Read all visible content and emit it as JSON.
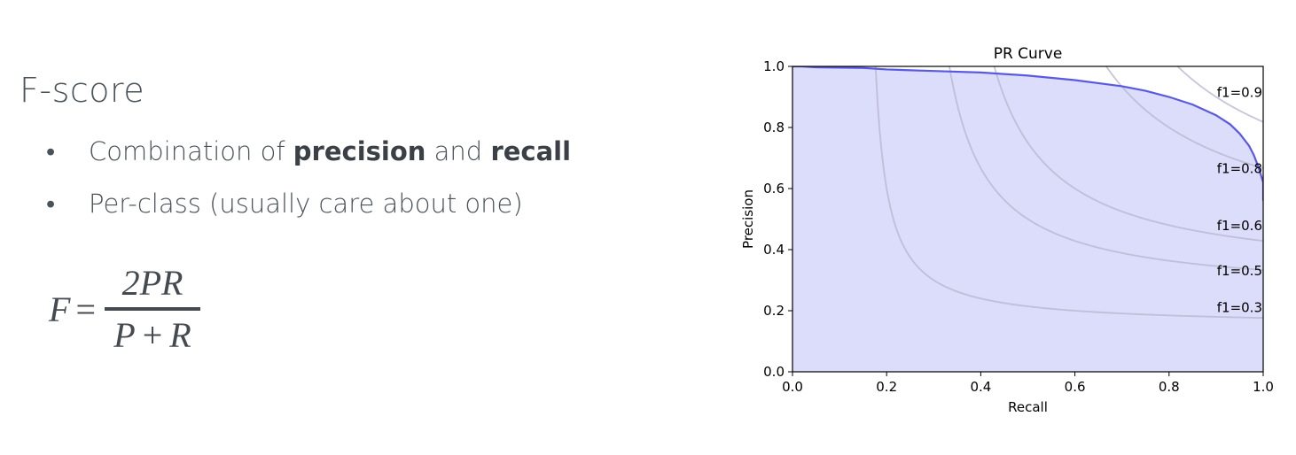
{
  "slide": {
    "title": "F-score",
    "bullets": [
      {
        "parts": [
          {
            "text": "Combination of ",
            "bold": false
          },
          {
            "text": "precision",
            "bold": true
          },
          {
            "text": " and ",
            "bold": false
          },
          {
            "text": "recall",
            "bold": true
          }
        ]
      },
      {
        "parts": [
          {
            "text": "Per-class (usually care about one)",
            "bold": false
          }
        ]
      }
    ],
    "formula": {
      "lhs": "F",
      "equals": "=",
      "numerator": "2PR",
      "denominator_left": "P",
      "denominator_op": "+",
      "denominator_right": "R"
    },
    "bullet_glyph": "•"
  },
  "chart_data": {
    "type": "area",
    "title": "PR Curve",
    "xlabel": "Recall",
    "ylabel": "Precision",
    "xlim": [
      0,
      1
    ],
    "ylim": [
      0,
      1
    ],
    "xticks": [
      0.0,
      0.2,
      0.4,
      0.6,
      0.8,
      1.0
    ],
    "yticks": [
      0.0,
      0.2,
      0.4,
      0.6,
      0.8,
      1.0
    ],
    "grid": false,
    "fill_color": "#dcdcfb",
    "line_color": "#5a5ae0",
    "iso_color": "#b8b8d0",
    "iso_f1": [
      {
        "label": "f1=0.9",
        "f": 0.9,
        "label_y": 0.915
      },
      {
        "label": "f1=0.8",
        "f": 0.8,
        "label_y": 0.665
      },
      {
        "label": "f1=0.6",
        "f": 0.6,
        "label_y": 0.478
      },
      {
        "label": "f1=0.5",
        "f": 0.5,
        "label_y": 0.33
      },
      {
        "label": "f1=0.3",
        "f": 0.3,
        "label_y": 0.21
      }
    ],
    "series": [
      {
        "x": [
          0.0,
          0.02,
          0.05,
          0.1,
          0.15,
          0.2,
          0.3,
          0.4,
          0.5,
          0.6,
          0.7,
          0.75,
          0.8,
          0.85,
          0.9,
          0.93,
          0.95,
          0.97,
          0.98,
          0.99,
          1.0,
          1.0
        ],
        "y": [
          1.0,
          1.0,
          0.997,
          0.996,
          0.995,
          0.99,
          0.985,
          0.98,
          0.97,
          0.955,
          0.935,
          0.92,
          0.9,
          0.875,
          0.84,
          0.81,
          0.78,
          0.74,
          0.71,
          0.67,
          0.62,
          0.56
        ]
      }
    ]
  }
}
